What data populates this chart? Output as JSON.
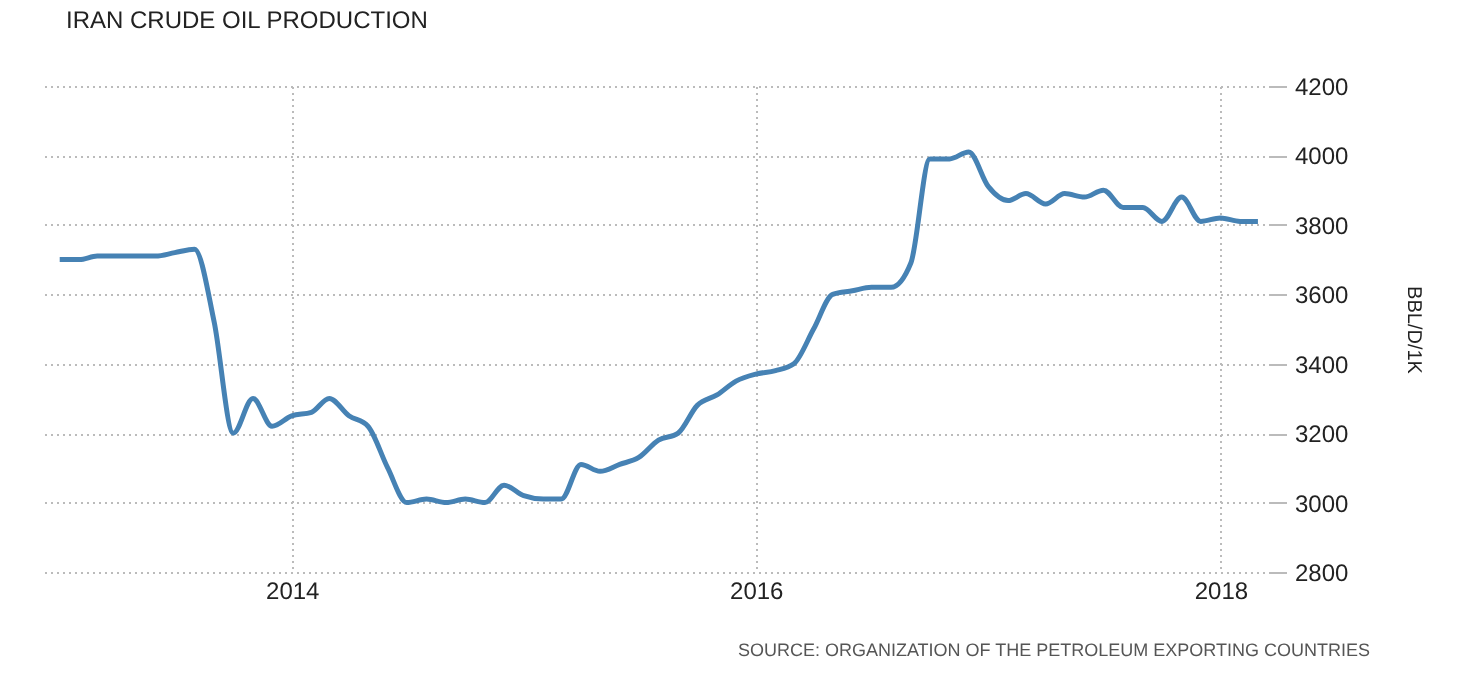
{
  "chart_data": {
    "type": "line",
    "title": "IRAN CRUDE OIL PRODUCTION",
    "ylabel": "BBL/D/1K",
    "x": [
      "2013-01",
      "2013-02",
      "2013-03",
      "2013-04",
      "2013-05",
      "2013-06",
      "2013-07",
      "2013-08",
      "2013-09",
      "2013-10",
      "2013-11",
      "2013-12",
      "2014-01",
      "2014-02",
      "2014-03",
      "2014-04",
      "2014-05",
      "2014-06",
      "2014-07",
      "2014-08",
      "2014-09",
      "2014-10",
      "2014-11",
      "2014-12",
      "2015-01",
      "2015-02",
      "2015-03",
      "2015-04",
      "2015-05",
      "2015-06",
      "2015-07",
      "2015-08",
      "2015-09",
      "2015-10",
      "2015-11",
      "2015-12",
      "2016-01",
      "2016-02",
      "2016-03",
      "2016-04",
      "2016-05",
      "2016-06",
      "2016-07",
      "2016-08",
      "2016-09",
      "2016-10",
      "2016-11",
      "2016-12",
      "2017-01",
      "2017-02",
      "2017-03",
      "2017-04",
      "2017-05",
      "2017-06",
      "2017-07",
      "2017-08",
      "2017-09",
      "2017-10",
      "2017-11",
      "2017-12",
      "2018-01",
      "2018-02",
      "2018-03"
    ],
    "values": [
      3700,
      3700,
      3710,
      3710,
      3710,
      3710,
      3720,
      3730,
      3520,
      3200,
      3300,
      3220,
      3250,
      3260,
      3300,
      3250,
      3220,
      3100,
      3000,
      3010,
      3000,
      3010,
      3000,
      3050,
      3020,
      3010,
      3010,
      3110,
      3090,
      3110,
      3130,
      3180,
      3200,
      3280,
      3310,
      3350,
      3370,
      3380,
      3400,
      3500,
      3600,
      3610,
      3620,
      3620,
      3690,
      3990,
      3990,
      4010,
      3910,
      3870,
      3890,
      3860,
      3890,
      3880,
      3900,
      3850,
      3850,
      3810,
      3880,
      3810,
      3820,
      3810,
      3810
    ],
    "color": "#4682b4",
    "xlim": [
      "2012-12-01",
      "2018-03-20"
    ],
    "xticks": [
      "2014",
      "2016",
      "2018"
    ],
    "ylim": [
      2800,
      4200
    ],
    "yticks": [
      2800,
      3000,
      3200,
      3400,
      3600,
      3800,
      4000,
      4200
    ],
    "grid": true,
    "annotations": [
      "SOURCE: ORGANIZATION OF THE PETROLEUM EXPORTING COUNTRIES"
    ]
  }
}
